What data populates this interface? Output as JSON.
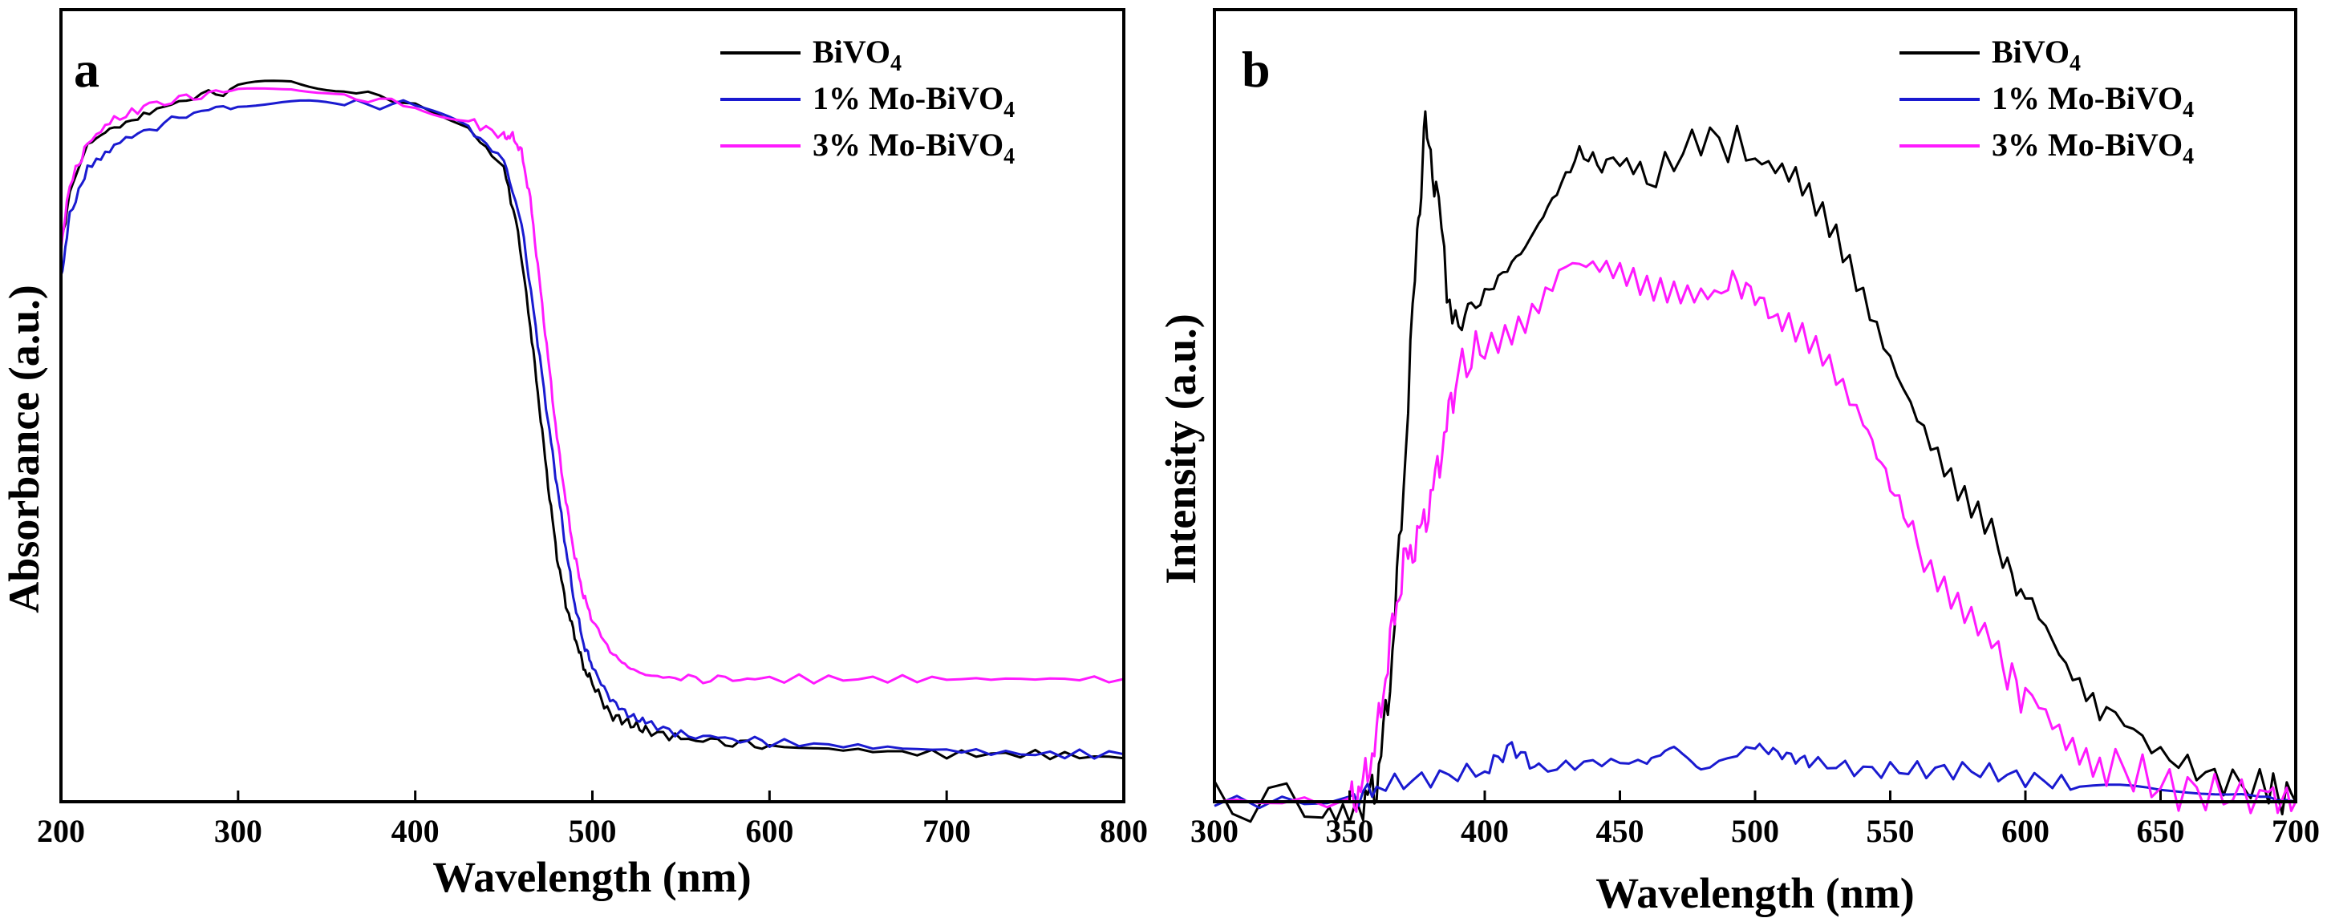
{
  "chart_data": [
    {
      "panel": "a",
      "type": "line",
      "title": "",
      "xlabel": "Wavelength (nm)",
      "ylabel": "Absorbance (a.u.)",
      "xlim": [
        200,
        800
      ],
      "ylim": [
        0,
        1
      ],
      "x_ticks": [
        200,
        300,
        400,
        500,
        600,
        700,
        800
      ],
      "y_ticks_labeled": false,
      "legend_position": "top-right",
      "series": [
        {
          "name": "BiVO",
          "subscript": "4",
          "color": "#000000",
          "x": [
            200,
            205,
            215,
            230,
            250,
            275,
            300,
            330,
            360,
            400,
            430,
            450,
            458,
            465,
            470,
            475,
            480,
            485,
            490,
            495,
            500,
            510,
            520,
            530,
            550,
            575,
            600,
            650,
            700,
            750,
            800
          ],
          "y": [
            0.7,
            0.77,
            0.83,
            0.85,
            0.87,
            0.89,
            0.9,
            0.91,
            0.9,
            0.88,
            0.85,
            0.8,
            0.72,
            0.6,
            0.5,
            0.4,
            0.31,
            0.25,
            0.21,
            0.17,
            0.15,
            0.11,
            0.1,
            0.09,
            0.08,
            0.075,
            0.07,
            0.065,
            0.06,
            0.06,
            0.055
          ]
        },
        {
          "name": "1% Mo-BiVO",
          "subscript": "4",
          "color": "#1a1ad0",
          "x": [
            200,
            205,
            215,
            230,
            250,
            275,
            300,
            330,
            360,
            400,
            430,
            450,
            460,
            468,
            475,
            480,
            485,
            490,
            495,
            500,
            510,
            520,
            530,
            550,
            575,
            600,
            650,
            700,
            750,
            800
          ],
          "y": [
            0.66,
            0.74,
            0.8,
            0.83,
            0.85,
            0.87,
            0.88,
            0.88,
            0.88,
            0.88,
            0.85,
            0.81,
            0.73,
            0.6,
            0.48,
            0.4,
            0.32,
            0.25,
            0.2,
            0.17,
            0.13,
            0.11,
            0.1,
            0.085,
            0.08,
            0.075,
            0.07,
            0.065,
            0.06,
            0.06
          ]
        },
        {
          "name": "3% Mo-BiVO",
          "subscript": "4",
          "color": "#ff1aff",
          "x": [
            200,
            205,
            215,
            230,
            250,
            275,
            300,
            330,
            360,
            400,
            430,
            450,
            455,
            460,
            465,
            470,
            475,
            480,
            485,
            490,
            495,
            500,
            510,
            520,
            530,
            550,
            575,
            600,
            650,
            700,
            750,
            800
          ],
          "y": [
            0.7,
            0.78,
            0.83,
            0.86,
            0.88,
            0.89,
            0.9,
            0.9,
            0.89,
            0.88,
            0.86,
            0.84,
            0.84,
            0.82,
            0.76,
            0.66,
            0.56,
            0.46,
            0.38,
            0.31,
            0.26,
            0.23,
            0.19,
            0.17,
            0.16,
            0.155,
            0.155,
            0.155,
            0.155,
            0.155,
            0.155,
            0.155
          ]
        }
      ]
    },
    {
      "panel": "b",
      "type": "line",
      "title": "",
      "xlabel": "Wavelength (nm)",
      "ylabel": "Intensity (a.u.)",
      "xlim": [
        300,
        700
      ],
      "ylim": [
        0,
        1
      ],
      "x_ticks": [
        300,
        350,
        400,
        450,
        500,
        550,
        600,
        650,
        700
      ],
      "y_ticks_labeled": false,
      "legend_position": "top-right",
      "series": [
        {
          "name": "BiVO",
          "subscript": "4",
          "color": "#000000",
          "x": [
            300,
            340,
            355,
            360,
            365,
            370,
            375,
            378,
            382,
            388,
            395,
            405,
            415,
            425,
            435,
            445,
            460,
            480,
            500,
            515,
            530,
            545,
            560,
            575,
            590,
            600,
            615,
            630,
            650,
            670,
            690,
            700
          ],
          "y": [
            0.0,
            0.0,
            0.0,
            0.02,
            0.15,
            0.4,
            0.72,
            0.85,
            0.78,
            0.6,
            0.62,
            0.66,
            0.7,
            0.76,
            0.82,
            0.8,
            0.78,
            0.84,
            0.82,
            0.78,
            0.7,
            0.6,
            0.5,
            0.4,
            0.32,
            0.25,
            0.17,
            0.12,
            0.06,
            0.03,
            0.015,
            0.0
          ]
        },
        {
          "name": "1% Mo-BiVO",
          "subscript": "4",
          "color": "#1a1ad0",
          "x": [
            300,
            350,
            360,
            380,
            400,
            410,
            420,
            440,
            460,
            470,
            480,
            500,
            510,
            520,
            540,
            560,
            580,
            600,
            620,
            650,
            680,
            700
          ],
          "y": [
            0.0,
            0.0,
            0.02,
            0.03,
            0.04,
            0.07,
            0.04,
            0.05,
            0.05,
            0.07,
            0.04,
            0.07,
            0.06,
            0.05,
            0.04,
            0.04,
            0.04,
            0.03,
            0.02,
            0.01,
            0.01,
            0.0
          ]
        },
        {
          "name": "3% Mo-BiVO",
          "subscript": "4",
          "color": "#ff1aff",
          "x": [
            300,
            350,
            355,
            360,
            365,
            370,
            375,
            380,
            385,
            390,
            400,
            415,
            430,
            445,
            460,
            475,
            490,
            500,
            510,
            525,
            540,
            550,
            560,
            575,
            590,
            600,
            615,
            630,
            650,
            670,
            690,
            700
          ],
          "y": [
            0.0,
            0.0,
            0.02,
            0.08,
            0.2,
            0.3,
            0.33,
            0.38,
            0.46,
            0.54,
            0.58,
            0.62,
            0.68,
            0.66,
            0.64,
            0.65,
            0.66,
            0.64,
            0.6,
            0.55,
            0.48,
            0.4,
            0.33,
            0.25,
            0.18,
            0.13,
            0.08,
            0.05,
            0.02,
            0.01,
            0.005,
            0.0
          ]
        }
      ]
    }
  ]
}
